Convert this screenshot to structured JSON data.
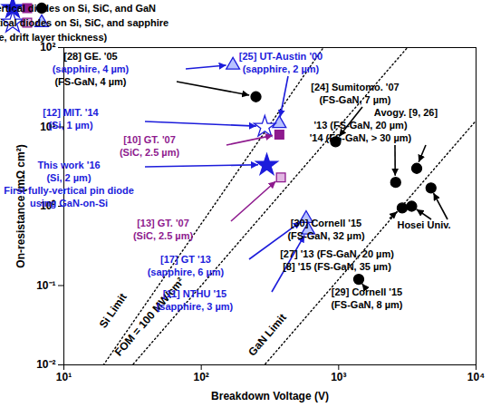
{
  "chart_data": {
    "type": "scatter",
    "x_label": "Breakdown Voltage (V)",
    "y_label": "On-resistance (mΩ cm²)",
    "log": true,
    "grid": false,
    "legend": "top left",
    "legend_note": "(Growth substrate, drift layer thickness)",
    "xlim": [
      10,
      10000
    ],
    "ylim": [
      0.01,
      100
    ],
    "xticks": [
      {
        "value": 10,
        "label": "10¹"
      },
      {
        "value": 100,
        "label": "10²"
      },
      {
        "value": 1000,
        "label": "10³"
      },
      {
        "value": 10000,
        "label": "10⁴"
      }
    ],
    "yticks": [
      {
        "value": 0.01,
        "label": "10⁻²"
      },
      {
        "value": 0.1,
        "label": "10⁻¹"
      },
      {
        "value": 1,
        "label": "10⁰"
      },
      {
        "value": 10,
        "label": "10¹"
      },
      {
        "value": 100,
        "label": "10²"
      }
    ],
    "series": [
      {
        "name": "Fully-vertical diodes on Si, SiC, and GaN",
        "points": [
          {
            "x": 300,
            "y": 3.3,
            "marker": "star",
            "color": "#1c1cdb"
          },
          {
            "x": 370,
            "y": 8,
            "marker": "square",
            "color": "#8e1a8e"
          },
          {
            "x": 250,
            "y": 24,
            "marker": "circle",
            "color": "#000000"
          },
          {
            "x": 950,
            "y": 6.5,
            "marker": "circle",
            "color": "#000000"
          },
          {
            "x": 2600,
            "y": 2,
            "marker": "circle",
            "color": "#000000"
          },
          {
            "x": 3700,
            "y": 3,
            "marker": "circle",
            "color": "#000000"
          },
          {
            "x": 2900,
            "y": 0.95,
            "marker": "circle",
            "color": "#000000"
          },
          {
            "x": 3400,
            "y": 1,
            "marker": "circle",
            "color": "#000000"
          },
          {
            "x": 4700,
            "y": 1.7,
            "marker": "circle",
            "color": "#000000"
          },
          {
            "x": 1400,
            "y": 0.12,
            "marker": "circle",
            "color": "#000000"
          }
        ]
      },
      {
        "name": "Quasi-vertical diodes on Si, SiC, and sapphire",
        "points": [
          {
            "x": 290,
            "y": 10,
            "marker": "star-open",
            "color": "#1c1cdb"
          },
          {
            "x": 380,
            "y": 2.3,
            "marker": "square-half",
            "color": "#8e1a8e"
          },
          {
            "x": 170,
            "y": 60,
            "marker": "triangle-open",
            "color": "#1c1cdb"
          },
          {
            "x": 370,
            "y": 11,
            "marker": "triangle-open",
            "color": "#1c1cdb"
          },
          {
            "x": 580,
            "y": 0.7,
            "marker": "triangle-open",
            "color": "#1c1cdb"
          },
          {
            "x": 600,
            "y": 0.5,
            "marker": "triangle-open",
            "color": "#1c1cdb"
          }
        ]
      }
    ],
    "limits": [
      {
        "name": "Si Limit",
        "x": [
          10,
          1000
        ],
        "y": [
          0.0019,
          190
        ],
        "line_style": "dotted",
        "color": "#000000"
      },
      {
        "name": "FOM = 100 MW/cm²",
        "x": [
          10,
          10000
        ],
        "y": [
          0.001,
          1000
        ],
        "line_style": "dotted",
        "color": "#000000"
      },
      {
        "name": "GaN Limit",
        "x": [
          100,
          10000
        ],
        "y": [
          0.0012,
          12
        ],
        "line_style": "dotted",
        "color": "#000000"
      }
    ],
    "annotations": [
      {
        "lines": [
          {
            "text": "[28] GE. '05",
            "color": "#000000"
          },
          {
            "text": "(sapphire, 4 µm)",
            "color": "#1c1cdb"
          },
          {
            "text": "(FS-GaN, 4 µm)",
            "color": "#000000"
          }
        ],
        "targets": [
          [
            1,
            2
          ],
          [
            0,
            2
          ]
        ]
      },
      {
        "lines": [
          {
            "text": "[25] UT-Austin '00",
            "color": "#1c1cdb"
          },
          {
            "text": "(sapphire, 2 µm)",
            "color": "#1c1cdb"
          }
        ],
        "targets": [
          [
            1,
            3
          ]
        ]
      },
      {
        "lines": [
          {
            "text": "[12] MIT. '14",
            "color": "#1c1cdb"
          },
          {
            "text": "(Si, 1 µm)",
            "color": "#1c1cdb"
          }
        ],
        "targets": [
          [
            1,
            0
          ]
        ]
      },
      {
        "lines": [
          {
            "text": "[10] GT. '07",
            "color": "#8e1a8e"
          },
          {
            "text": "(SiC, 2.5 µm)",
            "color": "#8e1a8e"
          }
        ],
        "targets": [
          [
            0,
            1
          ]
        ]
      },
      {
        "lines": [
          {
            "text": "This work '16",
            "color": "#1c1cdb"
          },
          {
            "text": "(Si, 2 µm)",
            "color": "#1c1cdb"
          },
          {
            "text": "First fully-vertical pin diode",
            "color": "#1c1cdb"
          },
          {
            "text": "using GaN-on-Si",
            "color": "#1c1cdb"
          }
        ],
        "targets": [
          [
            0,
            0
          ]
        ]
      },
      {
        "lines": [
          {
            "text": "[13] GT. '07",
            "color": "#8e1a8e"
          },
          {
            "text": "(SiC, 2.5 µm)",
            "color": "#8e1a8e"
          }
        ],
        "targets": [
          [
            1,
            1
          ]
        ]
      },
      {
        "lines": [
          {
            "text": "[17] GT '13",
            "color": "#1c1cdb"
          },
          {
            "text": "(sapphire, 6 µm)",
            "color": "#1c1cdb"
          }
        ],
        "targets": [
          [
            1,
            4
          ]
        ]
      },
      {
        "lines": [
          {
            "text": "[11] NTHU '15",
            "color": "#1c1cdb"
          },
          {
            "text": "(sapphire, 3 µm)",
            "color": "#1c1cdb"
          }
        ],
        "targets": [
          [
            1,
            5
          ]
        ]
      },
      {
        "lines": [
          {
            "text": "[24] Sumitomo. '07",
            "color": "#000000"
          },
          {
            "text": "(FS-GaN, 7 µm)",
            "color": "#000000"
          }
        ],
        "targets": [
          [
            0,
            3
          ]
        ]
      },
      {
        "lines": [
          {
            "text": "Avogy. [9, 26]",
            "color": "#000000"
          },
          {
            "text": "'13 (FS-GaN, 20 µm)",
            "color": "#000000"
          },
          {
            "text": "'14 (FS-GaN, > 30 µm)",
            "color": "#000000"
          }
        ],
        "targets": [
          [
            0,
            4
          ],
          [
            0,
            5
          ]
        ]
      },
      {
        "lines": [
          {
            "text": "[30] Cornell '15",
            "color": "#000000"
          },
          {
            "text": "(FS-GaN, 32 µm)",
            "color": "#000000"
          }
        ],
        "targets": [
          [
            0,
            6
          ]
        ]
      },
      {
        "lines": [
          {
            "text": "Hosei Univ.",
            "color": "#000000"
          }
        ],
        "targets": [
          [
            0,
            7
          ],
          [
            0,
            8
          ]
        ]
      },
      {
        "lines": [
          {
            "text": "[27] '13 (FS-GaN, 20 µm)",
            "color": "#000000"
          },
          {
            "text": "[8] '15 (FS-GaN, 35 µm)",
            "color": "#000000"
          }
        ]
      },
      {
        "lines": [
          {
            "text": "[29] Cornell '15",
            "color": "#000000"
          },
          {
            "text": "(FS-GaN, 8 µm)",
            "color": "#000000"
          }
        ],
        "targets": [
          [
            0,
            9
          ]
        ]
      }
    ]
  }
}
